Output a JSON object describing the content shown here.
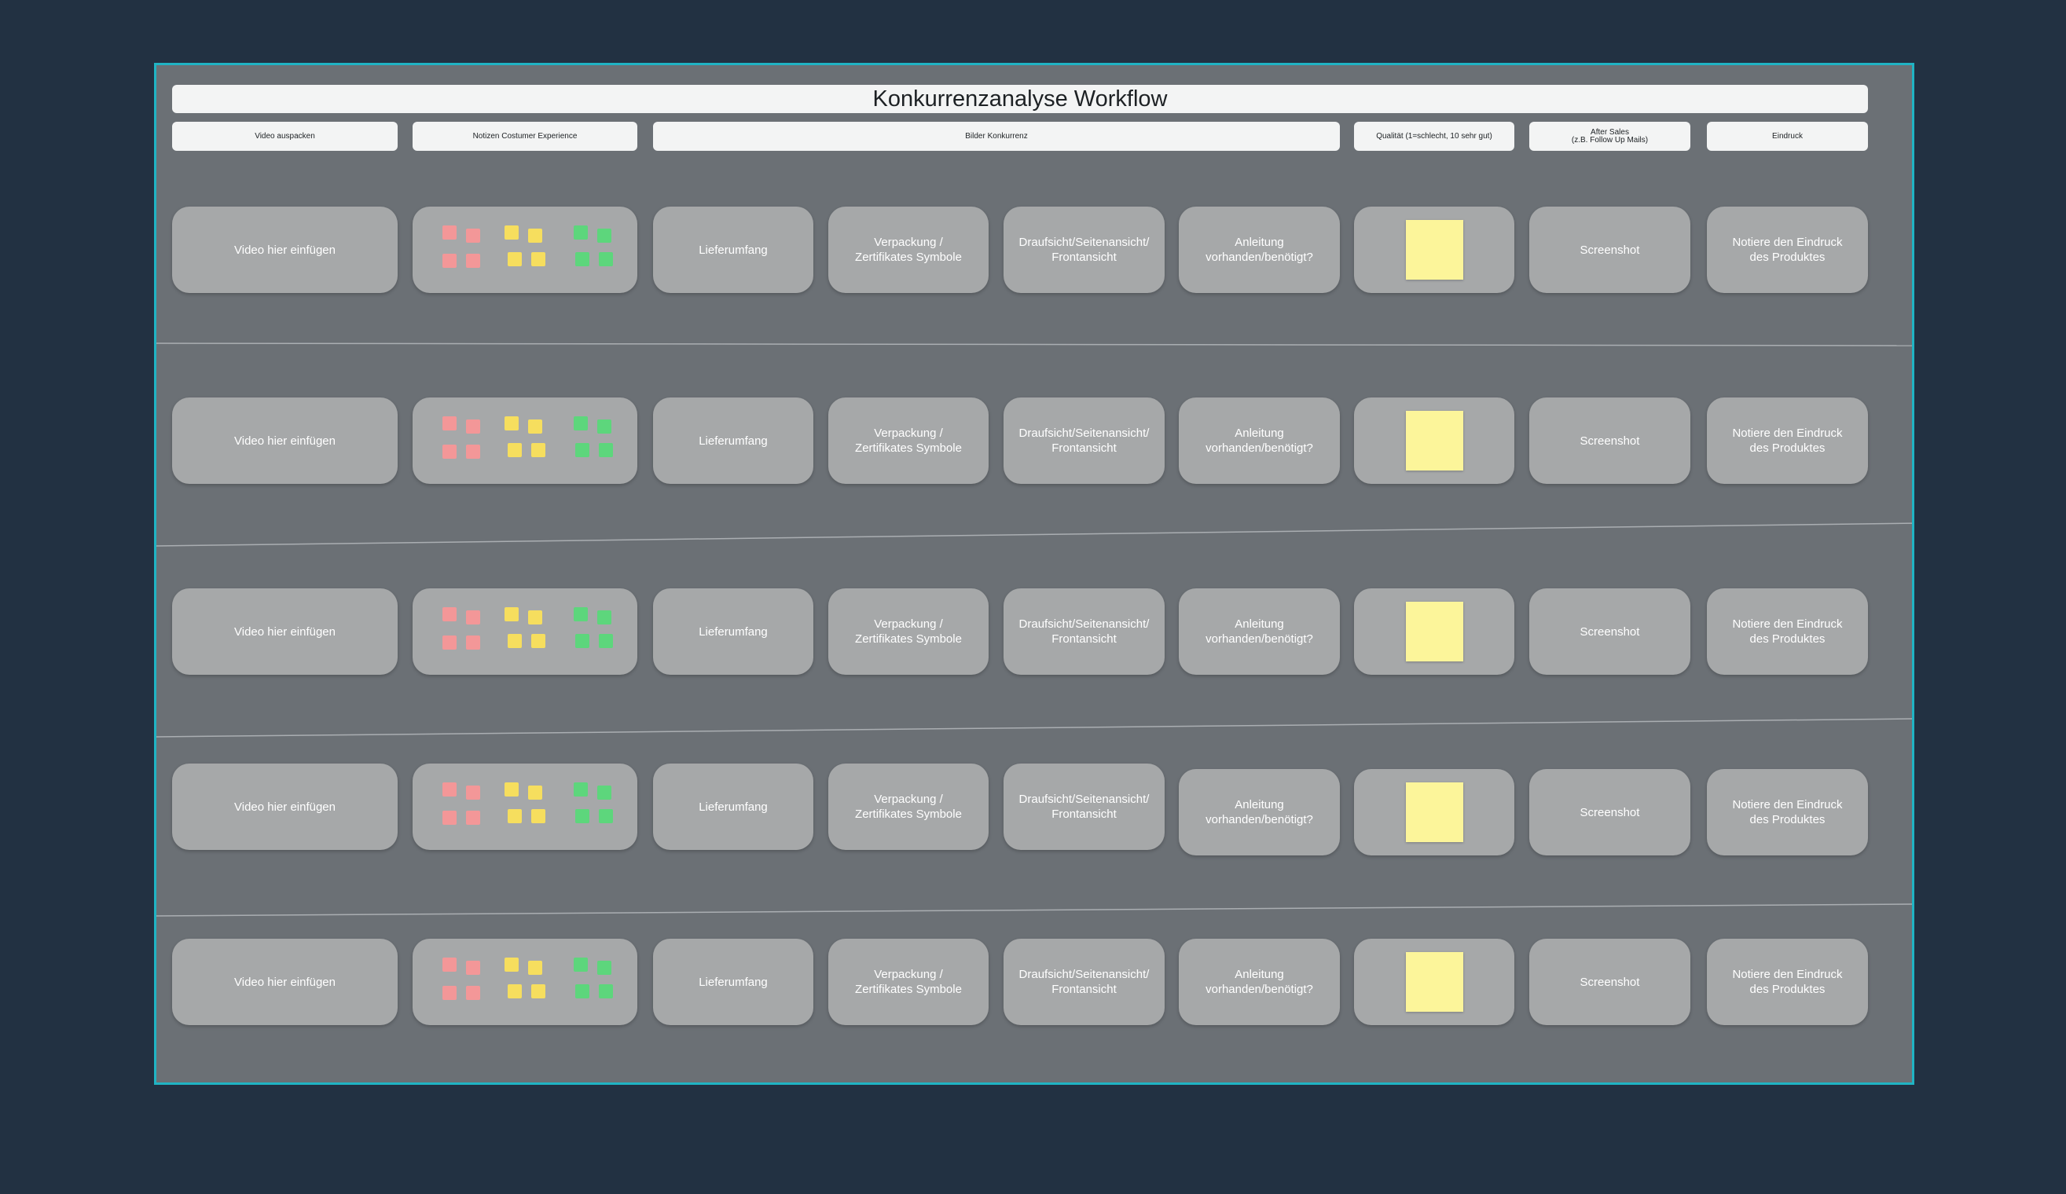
{
  "board": {
    "title": "Konkurrenzanalyse Workflow",
    "columns": [
      {
        "key": "video",
        "label": "Video auspacken"
      },
      {
        "key": "notes",
        "label": "Notizen Costumer Experience"
      },
      {
        "key": "images",
        "label": "Bilder Konkurrenz"
      },
      {
        "key": "quality",
        "label": "Qualität (1=schlecht, 10 sehr gut)"
      },
      {
        "key": "aftersales",
        "label": "After Sales\n(z.B. Follow Up Mails)"
      },
      {
        "key": "impression",
        "label": "Eindruck"
      }
    ],
    "card_labels": {
      "video": "Video hier einfügen",
      "lieferumfang": "Lieferumfang",
      "verpackung": "Verpackung /\nZertifikates Symbole",
      "ansichten": "Draufsicht/Seitenansicht/\nFrontansicht",
      "anleitung": "Anleitung\nvorhanden/benötigt?",
      "screenshot": "Screenshot",
      "eindruck": "Notiere den Eindruck\ndes Produktes"
    },
    "rows_count": 5,
    "colors": {
      "background": "#223142",
      "board": "#6b7075",
      "board_border": "#20b4c4",
      "card": "#a6a8a9",
      "sticky_yellow": "#fcf59a",
      "note_red": "#f39798",
      "note_yellow": "#f6de5e",
      "note_green": "#5dd67c"
    }
  }
}
